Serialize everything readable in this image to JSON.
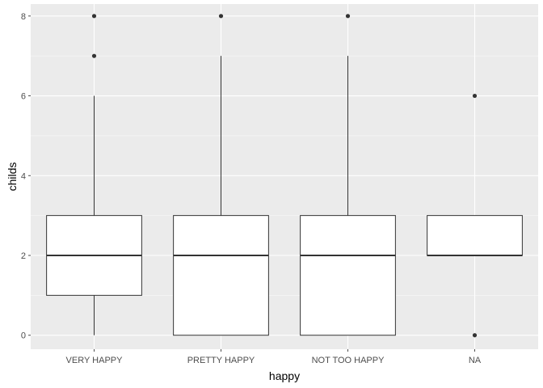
{
  "chart_data": {
    "type": "boxplot",
    "xlabel": "happy",
    "ylabel": "childs",
    "ylim": [
      -0.35,
      8.3
    ],
    "yticks": [
      0,
      2,
      4,
      6,
      8
    ],
    "grid": true,
    "categories": [
      "VERY HAPPY",
      "PRETTY HAPPY",
      "NOT TOO HAPPY",
      "NA"
    ],
    "boxes": [
      {
        "category": "VERY HAPPY",
        "whisker_low": 0,
        "q1": 1,
        "median": 2,
        "q3": 3,
        "whisker_high": 6,
        "outliers": [
          7,
          8
        ]
      },
      {
        "category": "PRETTY HAPPY",
        "whisker_low": 0,
        "q1": 0,
        "median": 2,
        "q3": 3,
        "whisker_high": 7,
        "outliers": [
          8
        ]
      },
      {
        "category": "NOT TOO HAPPY",
        "whisker_low": 0,
        "q1": 0,
        "median": 2,
        "q3": 3,
        "whisker_high": 7,
        "outliers": [
          8
        ]
      },
      {
        "category": "NA",
        "whisker_low": 2,
        "q1": 2,
        "median": 2,
        "q3": 3,
        "whisker_high": 3,
        "outliers": [
          0,
          6
        ]
      }
    ],
    "colors": {
      "panel": "#ebebeb",
      "grid_major": "#ffffff",
      "box_fill": "#ffffff",
      "box_stroke": "#333333",
      "outlier": "#333333",
      "tick": "#4d4d4d"
    }
  }
}
